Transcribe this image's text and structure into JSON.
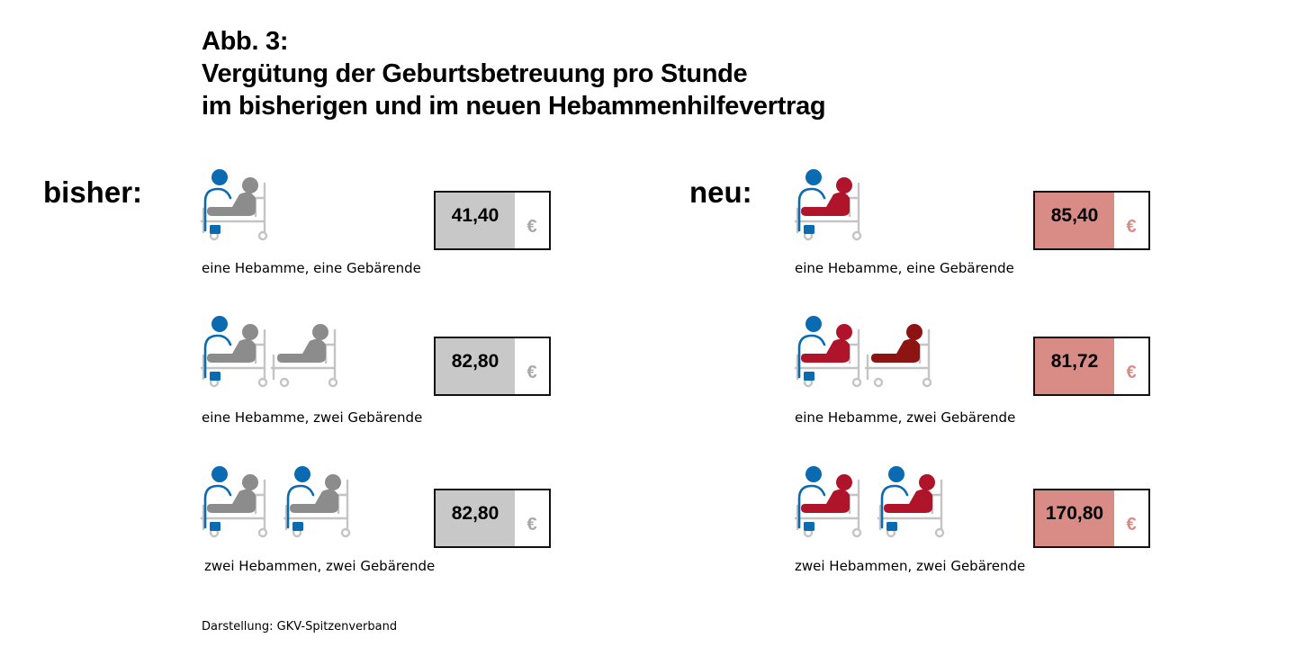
{
  "title": {
    "line1": "Abb. 3:",
    "line2": "Vergütung der Geburtsbetreuung pro Stunde",
    "line3": "im bisherigen und im neuen Hebammenhilfevertrag"
  },
  "source": "Darstellung: GKV-Spitzenverband",
  "colors": {
    "midwife": "#0a6bb3",
    "old_patient": "#8c8c8c",
    "new_patient": "#b0142b",
    "new_patient_second_unattended": "#8e1414",
    "bed": "#c4c4c4",
    "old_box_fill": "#c8c8c8",
    "new_box_fill": "#d98b86",
    "old_currency": "#a8a8a8",
    "new_currency": "#d98b86"
  },
  "chart_data": {
    "type": "table",
    "currency": "€",
    "groups": [
      {
        "label": "bisher:",
        "rows": [
          {
            "caption": "eine Hebamme, eine Gebärende",
            "value": "41,40",
            "midwives": 1,
            "patients": 1
          },
          {
            "caption": "eine Hebamme, zwei Gebärende",
            "value": "82,80",
            "midwives": 1,
            "patients": 2
          },
          {
            "caption": "zwei Hebammen, zwei Gebärende",
            "value": "82,80",
            "midwives": 2,
            "patients": 2
          }
        ]
      },
      {
        "label": "neu:",
        "rows": [
          {
            "caption": "eine Hebamme, eine Gebärende",
            "value": "85,40",
            "midwives": 1,
            "patients": 1
          },
          {
            "caption": "eine Hebamme, zwei Gebärende",
            "value": "81,72",
            "midwives": 1,
            "patients": 2
          },
          {
            "caption": "zwei Hebammen, zwei Gebärende",
            "value": "170,80",
            "midwives": 2,
            "patients": 2
          }
        ]
      }
    ]
  }
}
